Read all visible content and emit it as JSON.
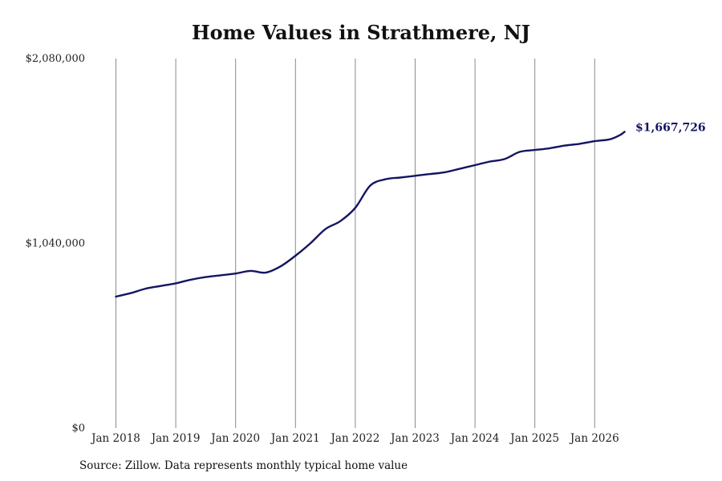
{
  "chart_data": {
    "type": "line",
    "title": "Home Values in Strathmere, NJ",
    "xlabel": "",
    "ylabel": "",
    "ylim": [
      0,
      2080000
    ],
    "y_ticks": [
      0,
      1040000,
      2080000
    ],
    "y_tick_labels": [
      "$0",
      "$1,040,000",
      "$2,080,000"
    ],
    "x_tick_labels": [
      "Jan 2018",
      "Jan 2019",
      "Jan 2020",
      "Jan 2021",
      "Jan 2022",
      "Jan 2023",
      "Jan 2024",
      "Jan 2025",
      "Jan 2026"
    ],
    "grid": "vertical",
    "line_color": "#141560",
    "end_label": "$1,667,726",
    "series": [
      {
        "x": [
          "2018-01",
          "2018-04",
          "2018-07",
          "2018-10",
          "2019-01",
          "2019-04",
          "2019-07",
          "2019-10",
          "2020-01",
          "2020-04",
          "2020-07",
          "2020-10",
          "2021-01",
          "2021-04",
          "2021-07",
          "2021-10",
          "2022-01",
          "2022-04",
          "2022-07",
          "2022-10",
          "2023-01",
          "2023-04",
          "2023-07",
          "2023-10",
          "2024-01",
          "2024-04",
          "2024-07",
          "2024-10",
          "2025-01",
          "2025-04",
          "2025-07",
          "2025-10",
          "2026-01",
          "2026-04",
          "2026-06",
          "2026-07"
        ],
        "values": [
          740000,
          760000,
          785000,
          800000,
          815000,
          835000,
          850000,
          860000,
          870000,
          885000,
          875000,
          910000,
          970000,
          1040000,
          1120000,
          1165000,
          1240000,
          1365000,
          1400000,
          1410000,
          1420000,
          1430000,
          1440000,
          1460000,
          1480000,
          1500000,
          1515000,
          1555000,
          1565000,
          1575000,
          1590000,
          1600000,
          1615000,
          1625000,
          1648000,
          1667726
        ]
      }
    ]
  },
  "source_note": "Source: Zillow. Data represents monthly typical home value"
}
